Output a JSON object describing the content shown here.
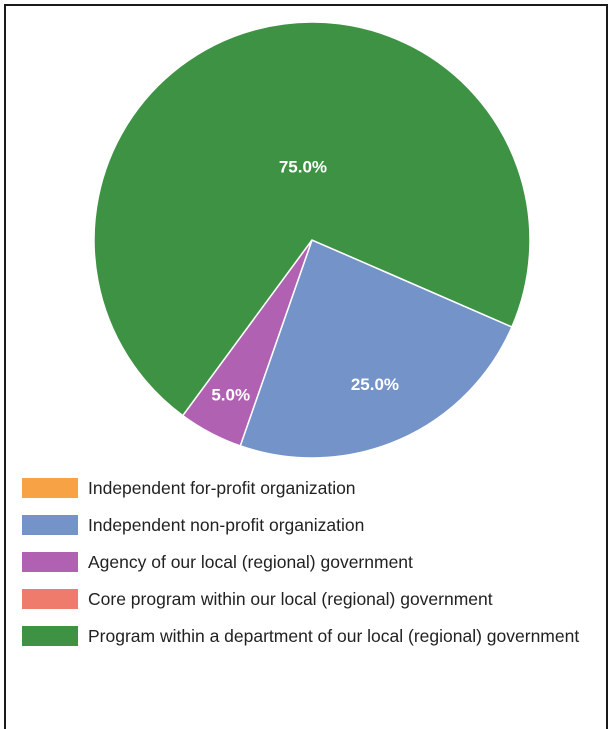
{
  "chart_data": {
    "type": "pie",
    "title": "",
    "slices": [
      {
        "label": "Independent for-profit organization",
        "value": 0,
        "value_label": "",
        "color": "#f6a245"
      },
      {
        "label": "Independent non-profit organization",
        "value": 25.0,
        "value_label": "25.0%",
        "color": "#7393c9"
      },
      {
        "label": "Agency of our local (regional) government",
        "value": 5.0,
        "value_label": "5.0%",
        "color": "#b061b2"
      },
      {
        "label": "Core program within our local (regional) government",
        "value": 0,
        "value_label": "",
        "color": "#ef7b6d"
      },
      {
        "label": "Program within a department of our local (regional) government",
        "value": 75.0,
        "value_label": "75.0%",
        "color": "#3e9244"
      }
    ],
    "legend_position": "bottom"
  }
}
